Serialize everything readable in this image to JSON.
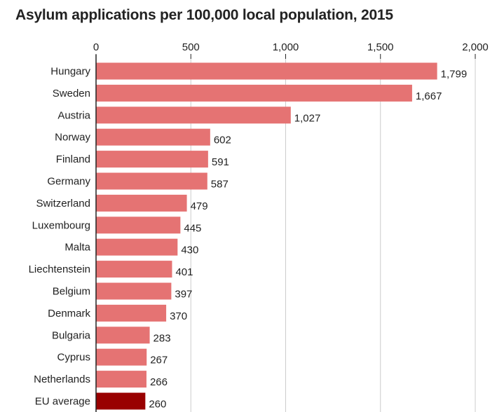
{
  "chart_data": {
    "type": "bar",
    "orientation": "horizontal",
    "title": "Asylum applications per 100,000 local population, 2015",
    "xlabel": "",
    "ylabel": "",
    "xlim": [
      0,
      2000
    ],
    "x_ticks": [
      0,
      500,
      1000,
      1500,
      2000
    ],
    "x_tick_labels": [
      "0",
      "500",
      "1,000",
      "1,500",
      "2,000"
    ],
    "grid": true,
    "categories": [
      "Hungary",
      "Sweden",
      "Austria",
      "Norway",
      "Finland",
      "Germany",
      "Switzerland",
      "Luxembourg",
      "Malta",
      "Liechtenstein",
      "Belgium",
      "Denmark",
      "Bulgaria",
      "Cyprus",
      "Netherlands",
      "EU average"
    ],
    "values": [
      1799,
      1667,
      1027,
      602,
      591,
      587,
      479,
      445,
      430,
      401,
      397,
      370,
      283,
      267,
      266,
      260
    ],
    "value_labels": [
      "1,799",
      "1,667",
      "1,027",
      "602",
      "591",
      "587",
      "479",
      "445",
      "430",
      "401",
      "397",
      "370",
      "283",
      "267",
      "266",
      "260"
    ],
    "colors": {
      "bar": "#e57373",
      "highlight": "#990000",
      "grid": "#cccccc",
      "axis": "#222222"
    },
    "highlight_category": "EU average"
  }
}
